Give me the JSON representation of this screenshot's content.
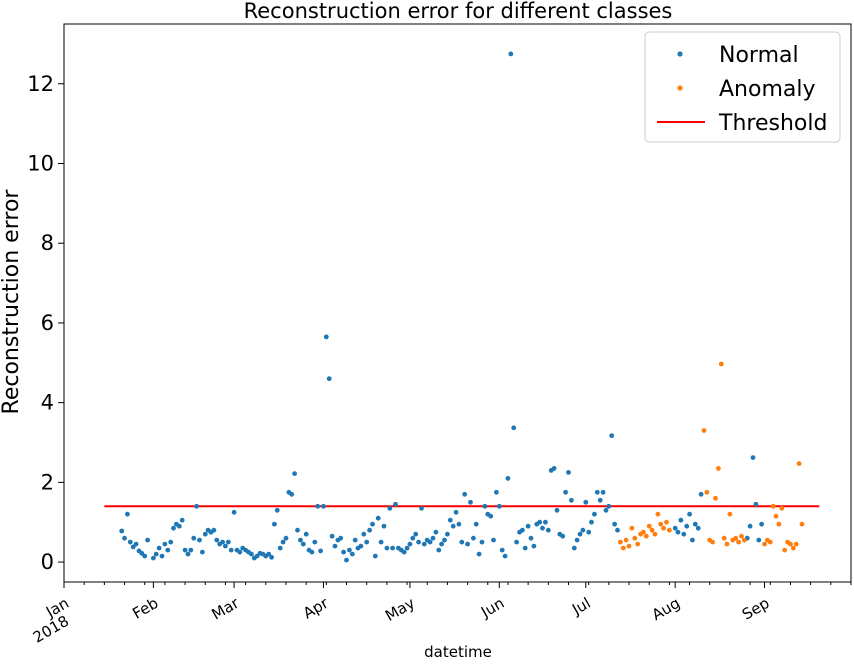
{
  "chart_data": {
    "type": "scatter",
    "title": "Reconstruction error for different classes",
    "xlabel": "datetime",
    "ylabel": "Reconstruction error",
    "xlim": [
      "2018-01-01",
      "2018-10-01"
    ],
    "ylim": [
      -0.5,
      13.5
    ],
    "yticks": [
      0,
      2,
      4,
      6,
      8,
      10,
      12
    ],
    "ytick_labels": [
      "0",
      "2",
      "4",
      "6",
      "8",
      "10",
      "12"
    ],
    "xticks": [
      {
        "date": "2018-01-01",
        "label": "Jan",
        "label2": "2018"
      },
      {
        "date": "2018-02-01",
        "label": "Feb"
      },
      {
        "date": "2018-03-01",
        "label": "Mar"
      },
      {
        "date": "2018-04-01",
        "label": "Apr"
      },
      {
        "date": "2018-05-01",
        "label": "May"
      },
      {
        "date": "2018-06-01",
        "label": "Jun"
      },
      {
        "date": "2018-07-01",
        "label": "Jul"
      },
      {
        "date": "2018-08-01",
        "label": "Aug"
      },
      {
        "date": "2018-09-01",
        "label": "Sep"
      }
    ],
    "grid": false,
    "legend_position": "top-right",
    "threshold": {
      "name": "Threshold",
      "value": 1.4,
      "x": [
        "2018-01-15",
        "2018-09-20"
      ],
      "color": "#ff0000"
    },
    "series": [
      {
        "name": "Normal",
        "color": "#1f77b4",
        "points": [
          [
            "2018-01-21",
            0.78
          ],
          [
            "2018-01-22",
            0.6
          ],
          [
            "2018-01-23",
            1.2
          ],
          [
            "2018-01-24",
            0.5
          ],
          [
            "2018-01-25",
            0.38
          ],
          [
            "2018-01-26",
            0.45
          ],
          [
            "2018-01-27",
            0.28
          ],
          [
            "2018-01-28",
            0.22
          ],
          [
            "2018-01-29",
            0.15
          ],
          [
            "2018-01-30",
            0.55
          ],
          [
            "2018-02-01",
            0.1
          ],
          [
            "2018-02-02",
            0.2
          ],
          [
            "2018-02-03",
            0.35
          ],
          [
            "2018-02-04",
            0.15
          ],
          [
            "2018-02-05",
            0.45
          ],
          [
            "2018-02-06",
            0.3
          ],
          [
            "2018-02-07",
            0.5
          ],
          [
            "2018-02-08",
            0.85
          ],
          [
            "2018-02-09",
            0.95
          ],
          [
            "2018-02-10",
            0.9
          ],
          [
            "2018-02-11",
            1.05
          ],
          [
            "2018-02-12",
            0.3
          ],
          [
            "2018-02-13",
            0.2
          ],
          [
            "2018-02-14",
            0.3
          ],
          [
            "2018-02-15",
            0.6
          ],
          [
            "2018-02-16",
            1.4
          ],
          [
            "2018-02-17",
            0.55
          ],
          [
            "2018-02-18",
            0.25
          ],
          [
            "2018-02-19",
            0.7
          ],
          [
            "2018-02-20",
            0.8
          ],
          [
            "2018-02-21",
            0.75
          ],
          [
            "2018-02-22",
            0.8
          ],
          [
            "2018-02-23",
            0.55
          ],
          [
            "2018-02-24",
            0.45
          ],
          [
            "2018-02-25",
            0.5
          ],
          [
            "2018-02-26",
            0.4
          ],
          [
            "2018-02-27",
            0.5
          ],
          [
            "2018-02-28",
            0.3
          ],
          [
            "2018-03-01",
            1.25
          ],
          [
            "2018-03-02",
            0.3
          ],
          [
            "2018-03-03",
            0.25
          ],
          [
            "2018-03-04",
            0.35
          ],
          [
            "2018-03-05",
            0.3
          ],
          [
            "2018-03-06",
            0.25
          ],
          [
            "2018-03-07",
            0.2
          ],
          [
            "2018-03-08",
            0.1
          ],
          [
            "2018-03-09",
            0.15
          ],
          [
            "2018-03-10",
            0.22
          ],
          [
            "2018-03-11",
            0.2
          ],
          [
            "2018-03-12",
            0.15
          ],
          [
            "2018-03-13",
            0.2
          ],
          [
            "2018-03-14",
            0.12
          ],
          [
            "2018-03-15",
            0.95
          ],
          [
            "2018-03-16",
            1.3
          ],
          [
            "2018-03-17",
            0.35
          ],
          [
            "2018-03-18",
            0.5
          ],
          [
            "2018-03-19",
            0.6
          ],
          [
            "2018-03-20",
            1.75
          ],
          [
            "2018-03-21",
            1.7
          ],
          [
            "2018-03-22",
            2.22
          ],
          [
            "2018-03-23",
            0.8
          ],
          [
            "2018-03-24",
            0.55
          ],
          [
            "2018-03-25",
            0.45
          ],
          [
            "2018-03-26",
            0.7
          ],
          [
            "2018-03-27",
            0.3
          ],
          [
            "2018-03-28",
            0.25
          ],
          [
            "2018-03-29",
            0.5
          ],
          [
            "2018-03-30",
            1.4
          ],
          [
            "2018-03-31",
            0.28
          ],
          [
            "2018-04-01",
            1.4
          ],
          [
            "2018-04-02",
            5.65
          ],
          [
            "2018-04-03",
            4.6
          ],
          [
            "2018-04-04",
            0.65
          ],
          [
            "2018-04-05",
            0.4
          ],
          [
            "2018-04-06",
            0.55
          ],
          [
            "2018-04-07",
            0.6
          ],
          [
            "2018-04-08",
            0.25
          ],
          [
            "2018-04-09",
            0.05
          ],
          [
            "2018-04-10",
            0.3
          ],
          [
            "2018-04-11",
            0.2
          ],
          [
            "2018-04-12",
            0.55
          ],
          [
            "2018-04-13",
            0.35
          ],
          [
            "2018-04-14",
            0.4
          ],
          [
            "2018-04-15",
            0.7
          ],
          [
            "2018-04-16",
            0.5
          ],
          [
            "2018-04-17",
            0.8
          ],
          [
            "2018-04-18",
            0.95
          ],
          [
            "2018-04-19",
            0.15
          ],
          [
            "2018-04-20",
            1.1
          ],
          [
            "2018-04-21",
            0.5
          ],
          [
            "2018-04-22",
            0.9
          ],
          [
            "2018-04-23",
            0.35
          ],
          [
            "2018-04-24",
            1.35
          ],
          [
            "2018-04-25",
            0.35
          ],
          [
            "2018-04-26",
            1.45
          ],
          [
            "2018-04-27",
            0.35
          ],
          [
            "2018-04-28",
            0.3
          ],
          [
            "2018-04-29",
            0.25
          ],
          [
            "2018-04-30",
            0.35
          ],
          [
            "2018-05-01",
            0.45
          ],
          [
            "2018-05-02",
            0.6
          ],
          [
            "2018-05-03",
            0.7
          ],
          [
            "2018-05-04",
            0.5
          ],
          [
            "2018-05-05",
            1.35
          ],
          [
            "2018-05-06",
            0.45
          ],
          [
            "2018-05-07",
            0.55
          ],
          [
            "2018-05-08",
            0.5
          ],
          [
            "2018-05-09",
            0.6
          ],
          [
            "2018-05-10",
            0.75
          ],
          [
            "2018-05-11",
            0.3
          ],
          [
            "2018-05-12",
            0.45
          ],
          [
            "2018-05-13",
            0.55
          ],
          [
            "2018-05-14",
            0.7
          ],
          [
            "2018-05-15",
            1.05
          ],
          [
            "2018-05-16",
            0.9
          ],
          [
            "2018-05-17",
            1.25
          ],
          [
            "2018-05-18",
            0.95
          ],
          [
            "2018-05-19",
            0.5
          ],
          [
            "2018-05-20",
            1.7
          ],
          [
            "2018-05-21",
            0.45
          ],
          [
            "2018-05-22",
            1.5
          ],
          [
            "2018-05-23",
            0.6
          ],
          [
            "2018-05-24",
            0.95
          ],
          [
            "2018-05-25",
            0.2
          ],
          [
            "2018-05-26",
            0.5
          ],
          [
            "2018-05-27",
            1.4
          ],
          [
            "2018-05-28",
            1.2
          ],
          [
            "2018-05-29",
            1.15
          ],
          [
            "2018-05-30",
            0.55
          ],
          [
            "2018-05-31",
            1.75
          ],
          [
            "2018-06-01",
            1.4
          ],
          [
            "2018-06-02",
            0.3
          ],
          [
            "2018-06-03",
            0.15
          ],
          [
            "2018-06-04",
            2.1
          ],
          [
            "2018-06-05",
            12.75
          ],
          [
            "2018-06-06",
            3.37
          ],
          [
            "2018-06-07",
            0.5
          ],
          [
            "2018-06-08",
            0.75
          ],
          [
            "2018-06-09",
            0.8
          ],
          [
            "2018-06-10",
            0.35
          ],
          [
            "2018-06-11",
            0.9
          ],
          [
            "2018-06-12",
            0.6
          ],
          [
            "2018-06-13",
            0.4
          ],
          [
            "2018-06-14",
            0.95
          ],
          [
            "2018-06-15",
            1.0
          ],
          [
            "2018-06-16",
            0.85
          ],
          [
            "2018-06-17",
            1.0
          ],
          [
            "2018-06-18",
            0.8
          ],
          [
            "2018-06-19",
            2.3
          ],
          [
            "2018-06-20",
            2.35
          ],
          [
            "2018-06-21",
            1.3
          ],
          [
            "2018-06-22",
            0.7
          ],
          [
            "2018-06-23",
            0.65
          ],
          [
            "2018-06-24",
            1.75
          ],
          [
            "2018-06-25",
            2.25
          ],
          [
            "2018-06-26",
            1.55
          ],
          [
            "2018-06-27",
            0.35
          ],
          [
            "2018-06-28",
            0.55
          ],
          [
            "2018-06-29",
            0.7
          ],
          [
            "2018-06-30",
            0.8
          ],
          [
            "2018-07-01",
            1.5
          ],
          [
            "2018-07-02",
            0.75
          ],
          [
            "2018-07-03",
            1.0
          ],
          [
            "2018-07-04",
            1.2
          ],
          [
            "2018-07-05",
            1.75
          ],
          [
            "2018-07-06",
            1.55
          ],
          [
            "2018-07-07",
            1.75
          ],
          [
            "2018-07-08",
            1.3
          ],
          [
            "2018-07-09",
            1.4
          ],
          [
            "2018-07-10",
            3.17
          ],
          [
            "2018-07-11",
            0.95
          ],
          [
            "2018-07-12",
            0.8
          ],
          [
            "2018-08-01",
            0.85
          ],
          [
            "2018-08-02",
            0.75
          ],
          [
            "2018-08-03",
            1.05
          ],
          [
            "2018-08-04",
            0.7
          ],
          [
            "2018-08-05",
            0.9
          ],
          [
            "2018-08-06",
            1.2
          ],
          [
            "2018-08-07",
            0.55
          ],
          [
            "2018-08-08",
            0.95
          ],
          [
            "2018-08-09",
            0.85
          ],
          [
            "2018-08-10",
            1.7
          ],
          [
            "2018-08-26",
            0.6
          ],
          [
            "2018-08-27",
            0.9
          ],
          [
            "2018-08-28",
            2.62
          ],
          [
            "2018-08-29",
            1.45
          ],
          [
            "2018-08-30",
            0.55
          ],
          [
            "2018-08-31",
            0.95
          ]
        ]
      },
      {
        "name": "Anomaly",
        "color": "#ff7f0e",
        "points": [
          [
            "2018-07-13",
            0.5
          ],
          [
            "2018-07-14",
            0.35
          ],
          [
            "2018-07-15",
            0.55
          ],
          [
            "2018-07-16",
            0.4
          ],
          [
            "2018-07-17",
            0.85
          ],
          [
            "2018-07-18",
            0.6
          ],
          [
            "2018-07-19",
            0.45
          ],
          [
            "2018-07-20",
            0.7
          ],
          [
            "2018-07-21",
            0.75
          ],
          [
            "2018-07-22",
            0.65
          ],
          [
            "2018-07-23",
            0.9
          ],
          [
            "2018-07-24",
            0.8
          ],
          [
            "2018-07-25",
            0.7
          ],
          [
            "2018-07-26",
            1.2
          ],
          [
            "2018-07-27",
            0.95
          ],
          [
            "2018-07-28",
            0.85
          ],
          [
            "2018-07-29",
            1.0
          ],
          [
            "2018-07-30",
            0.8
          ],
          [
            "2018-08-11",
            3.3
          ],
          [
            "2018-08-12",
            1.75
          ],
          [
            "2018-08-13",
            0.55
          ],
          [
            "2018-08-14",
            0.5
          ],
          [
            "2018-08-15",
            1.6
          ],
          [
            "2018-08-16",
            2.35
          ],
          [
            "2018-08-17",
            4.97
          ],
          [
            "2018-08-18",
            0.6
          ],
          [
            "2018-08-19",
            0.45
          ],
          [
            "2018-08-20",
            1.2
          ],
          [
            "2018-08-21",
            0.55
          ],
          [
            "2018-08-22",
            0.6
          ],
          [
            "2018-08-23",
            0.5
          ],
          [
            "2018-08-24",
            0.65
          ],
          [
            "2018-08-25",
            0.55
          ],
          [
            "2018-09-01",
            0.45
          ],
          [
            "2018-09-02",
            0.55
          ],
          [
            "2018-09-03",
            0.5
          ],
          [
            "2018-09-04",
            1.4
          ],
          [
            "2018-09-05",
            1.15
          ],
          [
            "2018-09-06",
            0.95
          ],
          [
            "2018-09-07",
            1.35
          ],
          [
            "2018-09-08",
            0.3
          ],
          [
            "2018-09-09",
            0.5
          ],
          [
            "2018-09-10",
            0.45
          ],
          [
            "2018-09-11",
            0.35
          ],
          [
            "2018-09-12",
            0.45
          ],
          [
            "2018-09-13",
            2.47
          ],
          [
            "2018-09-14",
            0.95
          ]
        ]
      }
    ]
  }
}
